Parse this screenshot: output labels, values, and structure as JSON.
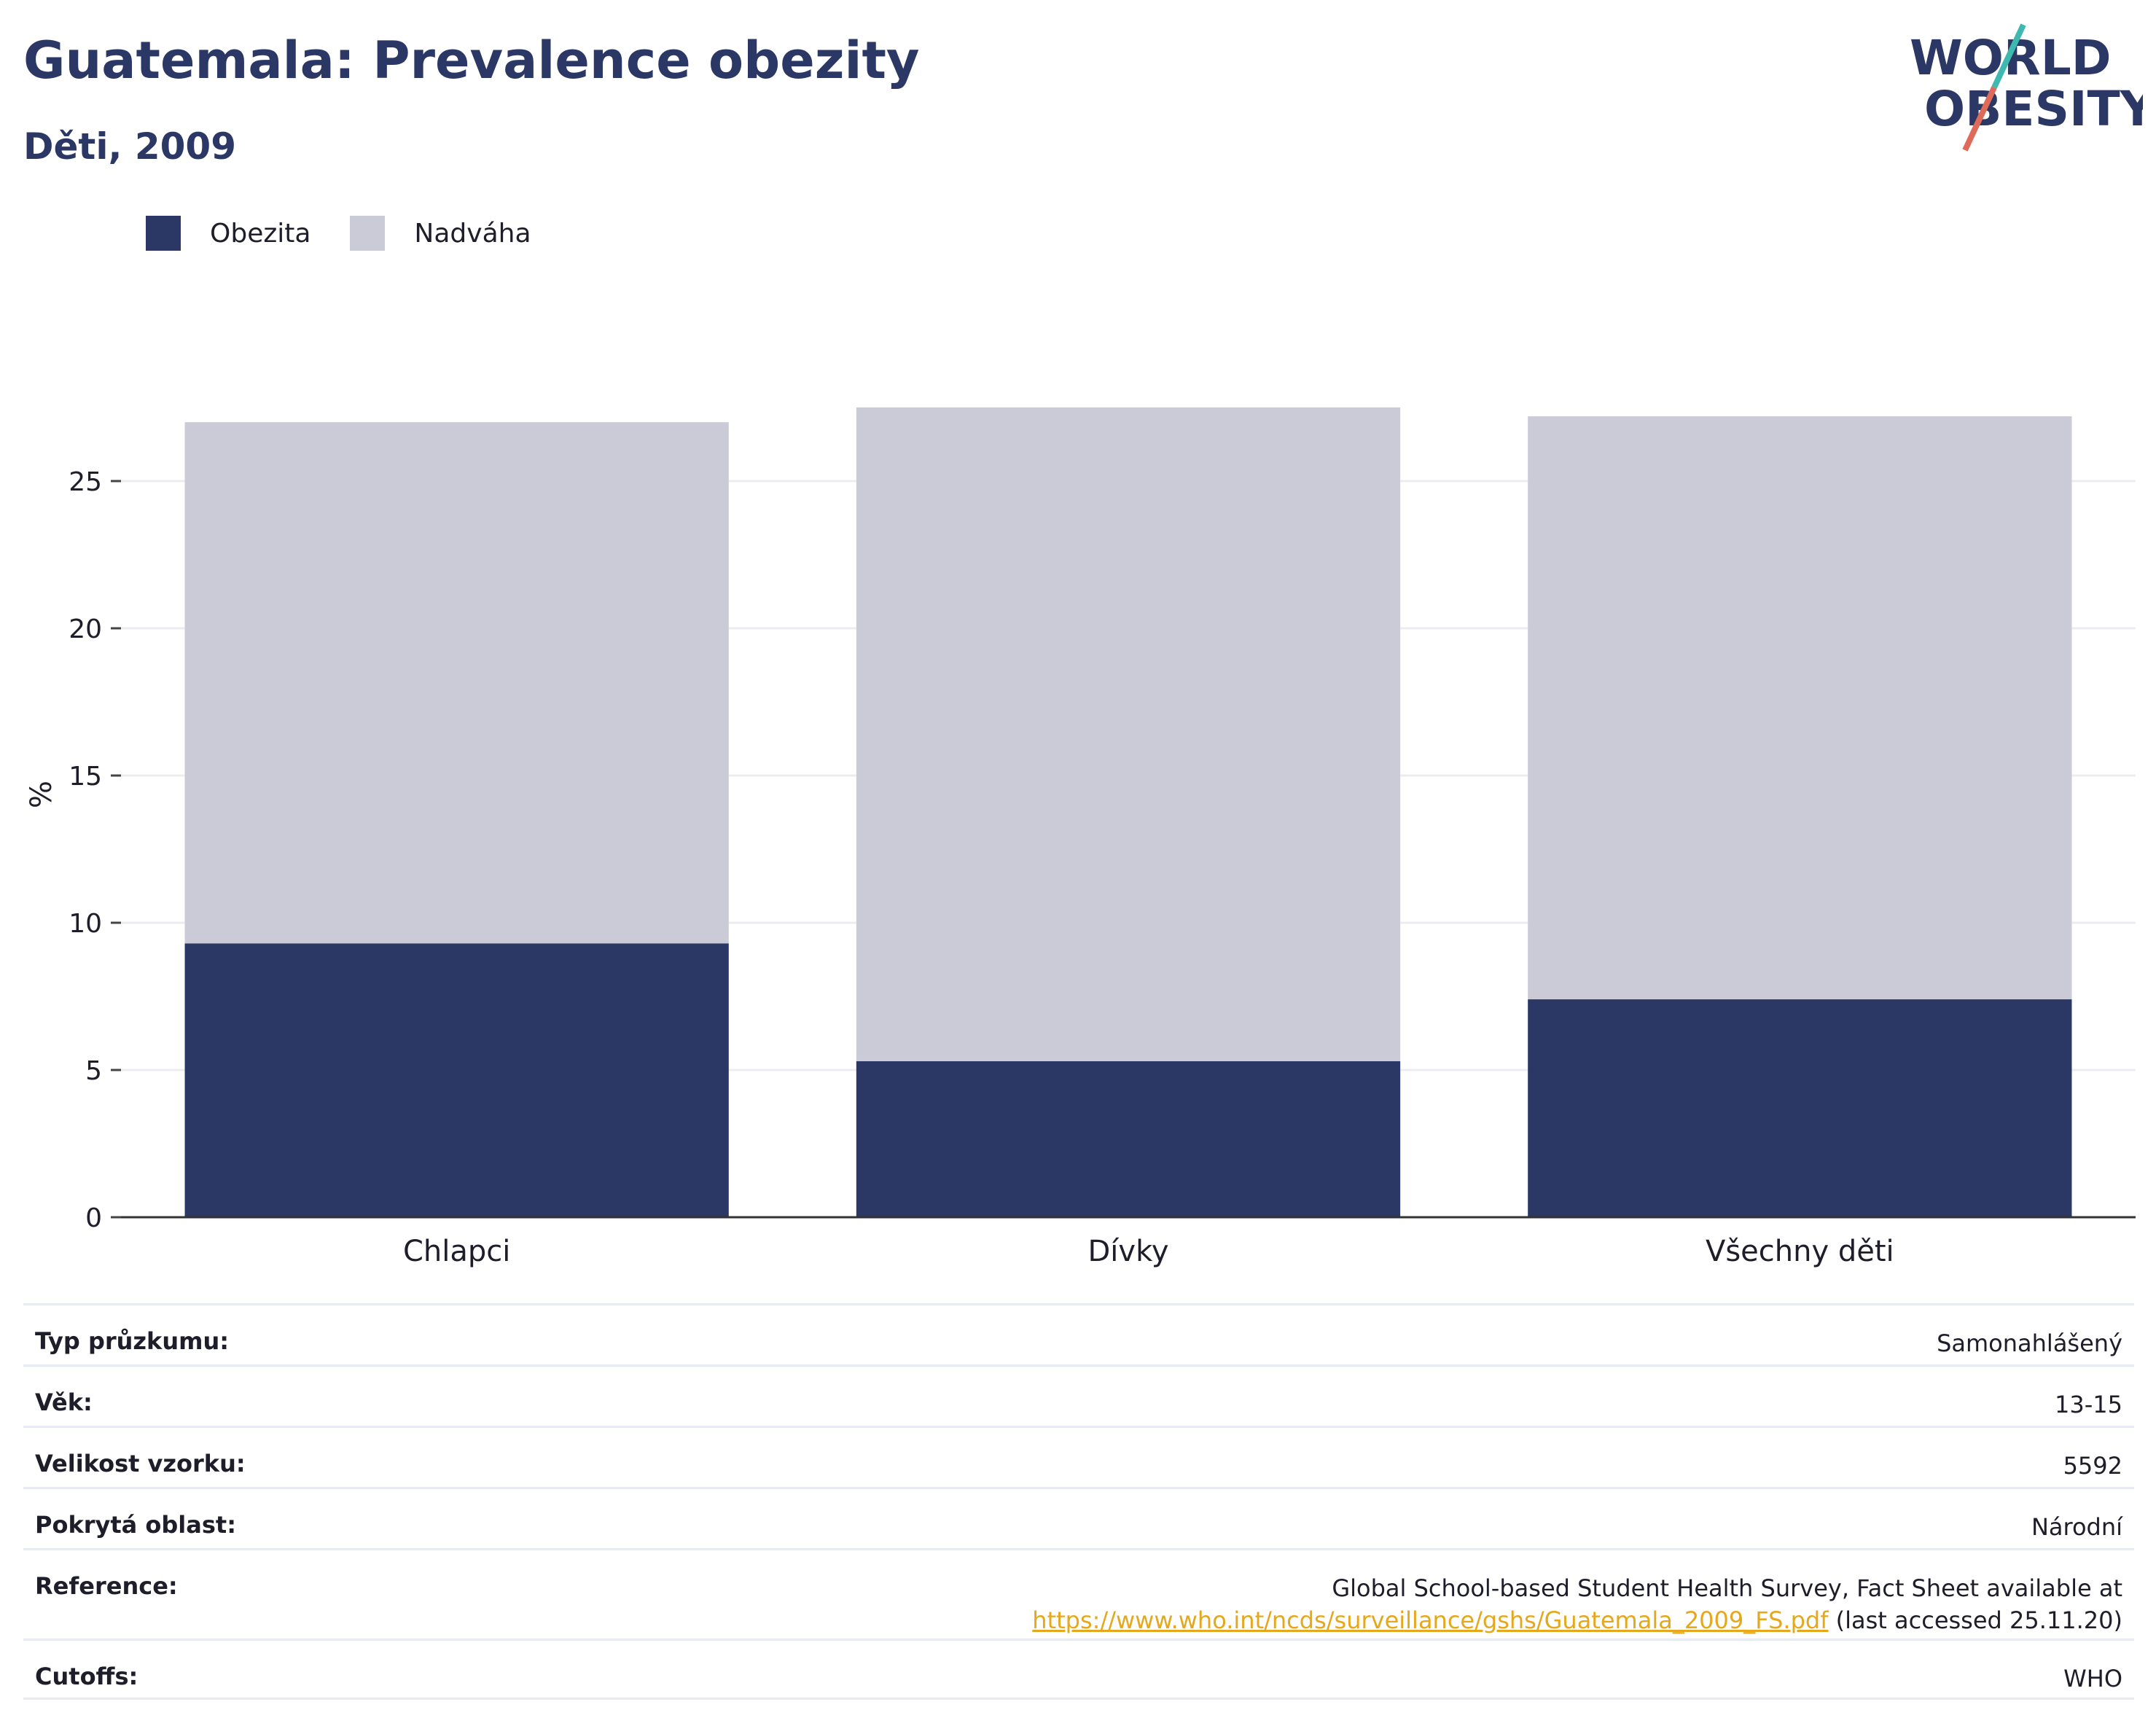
{
  "header": {
    "title": "Guatemala: Prevalence obezity",
    "subtitle": "Děti, 2009",
    "logo_line1": "WORLD",
    "logo_line2": "OBESITY"
  },
  "legend": [
    {
      "label": "Obezita",
      "color": "#2b3764"
    },
    {
      "label": "Nadváha",
      "color": "#cacbd7"
    }
  ],
  "chart_data": {
    "type": "bar",
    "stacked": true,
    "categories": [
      "Chlapci",
      "Dívky",
      "Všechny děti"
    ],
    "series": [
      {
        "name": "Obezita",
        "values": [
          9.3,
          5.3,
          7.4
        ],
        "color": "#2b3764"
      },
      {
        "name": "Nadváha",
        "values": [
          17.7,
          22.2,
          19.8
        ],
        "color": "#cacbd7"
      }
    ],
    "ylabel": "%",
    "ylim": [
      0,
      27.3
    ],
    "yticks": [
      0,
      5,
      10,
      15,
      20,
      25
    ],
    "grid": true,
    "legend_position": "top-left"
  },
  "info": {
    "rows": [
      {
        "key": "Typ průzkumu:",
        "value": "Samonahlášený"
      },
      {
        "key": "Věk:",
        "value": "13-15"
      },
      {
        "key": "Velikost vzorku:",
        "value": "5592"
      },
      {
        "key": "Pokrytá oblast:",
        "value": "Národní"
      }
    ],
    "reference": {
      "key": "Reference:",
      "line1": "Global School-based Student Health Survey, Fact Sheet available at",
      "link": "https://www.who.int/ncds/surveillance/gshs/Guatemala_2009_FS.pdf",
      "suffix": " (last accessed 25.11.20)"
    },
    "cutoffs": {
      "key": "Cutoffs:",
      "value": "WHO"
    }
  }
}
